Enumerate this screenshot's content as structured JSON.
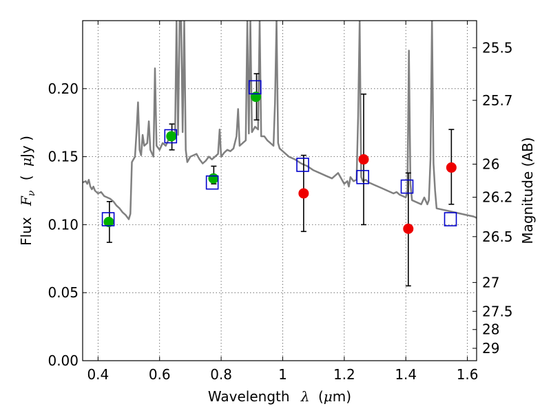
{
  "chart_data": {
    "type": "scatter",
    "xlabel": "Wavelength",
    "xlabel_symbol": "λ",
    "xlabel_unit_open": "(",
    "xlabel_unit_mu": "μ",
    "xlabel_unit_rest": "m)",
    "ylabel": "Flux",
    "ylabel_symbol_F": "F",
    "ylabel_symbol_sub": "ν",
    "ylabel_unit_open": "(",
    "ylabel_unit_mu": "μ",
    "ylabel_unit_rest": "Jy )",
    "y2label": "Magnitude (AB)",
    "xlim": [
      0.35,
      1.63
    ],
    "ylim": [
      0.0,
      0.25
    ],
    "grid": true,
    "x_ticks": [
      0.4,
      0.6,
      0.8,
      1.0,
      1.2,
      1.4,
      1.6
    ],
    "x_tick_labels": [
      "0.4",
      "0.6",
      "0.8",
      "1",
      "1.2",
      "1.4",
      "1.6"
    ],
    "y_ticks": [
      0.0,
      0.05,
      0.1,
      0.15,
      0.2
    ],
    "y_tick_labels": [
      "0.00",
      "0.05",
      "0.10",
      "0.15",
      "0.20"
    ],
    "y2_ticks": [
      {
        "flux": 0.2301,
        "label": "25.5"
      },
      {
        "flux": 0.1914,
        "label": "25.7"
      },
      {
        "flux": 0.1445,
        "label": "26"
      },
      {
        "flux": 0.1202,
        "label": "26.2"
      },
      {
        "flux": 0.0912,
        "label": "26.5"
      },
      {
        "flux": 0.0575,
        "label": "27"
      },
      {
        "flux": 0.0363,
        "label": "27.5"
      },
      {
        "flux": 0.0229,
        "label": "28"
      },
      {
        "flux": 0.0091,
        "label": "29"
      }
    ],
    "colors": {
      "model": "#808080",
      "green": "#00b000",
      "red": "#ee0000",
      "square": "#0000cc",
      "error": "#000000",
      "grid": "#555555"
    },
    "model_spectrum": [
      [
        0.35,
        0.131
      ],
      [
        0.36,
        0.132
      ],
      [
        0.365,
        0.13
      ],
      [
        0.37,
        0.133
      ],
      [
        0.375,
        0.128
      ],
      [
        0.38,
        0.126
      ],
      [
        0.385,
        0.128
      ],
      [
        0.39,
        0.125
      ],
      [
        0.4,
        0.123
      ],
      [
        0.41,
        0.124
      ],
      [
        0.42,
        0.121
      ],
      [
        0.43,
        0.12
      ],
      [
        0.44,
        0.119
      ],
      [
        0.45,
        0.117
      ],
      [
        0.46,
        0.114
      ],
      [
        0.47,
        0.112
      ],
      [
        0.48,
        0.109
      ],
      [
        0.49,
        0.107
      ],
      [
        0.5,
        0.104
      ],
      [
        0.505,
        0.108
      ],
      [
        0.51,
        0.146
      ],
      [
        0.52,
        0.15
      ],
      [
        0.525,
        0.168
      ],
      [
        0.53,
        0.19
      ],
      [
        0.535,
        0.155
      ],
      [
        0.54,
        0.151
      ],
      [
        0.545,
        0.166
      ],
      [
        0.55,
        0.158
      ],
      [
        0.56,
        0.16
      ],
      [
        0.565,
        0.176
      ],
      [
        0.57,
        0.155
      ],
      [
        0.58,
        0.15
      ],
      [
        0.585,
        0.215
      ],
      [
        0.59,
        0.158
      ],
      [
        0.6,
        0.155
      ],
      [
        0.61,
        0.16
      ],
      [
        0.62,
        0.158
      ],
      [
        0.63,
        0.163
      ],
      [
        0.64,
        0.168
      ],
      [
        0.65,
        0.163
      ],
      [
        0.655,
        0.25
      ],
      [
        0.66,
        0.166
      ],
      [
        0.665,
        0.25
      ],
      [
        0.67,
        0.25
      ],
      [
        0.675,
        0.168
      ],
      [
        0.68,
        0.25
      ],
      [
        0.685,
        0.155
      ],
      [
        0.69,
        0.146
      ],
      [
        0.7,
        0.15
      ],
      [
        0.72,
        0.152
      ],
      [
        0.73,
        0.148
      ],
      [
        0.74,
        0.145
      ],
      [
        0.75,
        0.147
      ],
      [
        0.76,
        0.15
      ],
      [
        0.77,
        0.148
      ],
      [
        0.78,
        0.15
      ],
      [
        0.79,
        0.152
      ],
      [
        0.795,
        0.17
      ],
      [
        0.8,
        0.15
      ],
      [
        0.81,
        0.153
      ],
      [
        0.82,
        0.155
      ],
      [
        0.83,
        0.154
      ],
      [
        0.84,
        0.156
      ],
      [
        0.85,
        0.165
      ],
      [
        0.855,
        0.185
      ],
      [
        0.86,
        0.158
      ],
      [
        0.87,
        0.16
      ],
      [
        0.88,
        0.162
      ],
      [
        0.885,
        0.25
      ],
      [
        0.89,
        0.167
      ],
      [
        0.895,
        0.25
      ],
      [
        0.9,
        0.168
      ],
      [
        0.91,
        0.172
      ],
      [
        0.92,
        0.17
      ],
      [
        0.925,
        0.25
      ],
      [
        0.93,
        0.165
      ],
      [
        0.94,
        0.165
      ],
      [
        0.95,
        0.162
      ],
      [
        0.96,
        0.16
      ],
      [
        0.97,
        0.158
      ],
      [
        0.975,
        0.19
      ],
      [
        0.98,
        0.25
      ],
      [
        0.985,
        0.16
      ],
      [
        0.99,
        0.156
      ],
      [
        1.0,
        0.154
      ],
      [
        1.02,
        0.15
      ],
      [
        1.04,
        0.148
      ],
      [
        1.06,
        0.145
      ],
      [
        1.08,
        0.143
      ],
      [
        1.1,
        0.14
      ],
      [
        1.12,
        0.138
      ],
      [
        1.14,
        0.136
      ],
      [
        1.16,
        0.134
      ],
      [
        1.18,
        0.138
      ],
      [
        1.19,
        0.134
      ],
      [
        1.2,
        0.13
      ],
      [
        1.21,
        0.132
      ],
      [
        1.215,
        0.128
      ],
      [
        1.22,
        0.135
      ],
      [
        1.23,
        0.132
      ],
      [
        1.24,
        0.133
      ],
      [
        1.245,
        0.18
      ],
      [
        1.25,
        0.25
      ],
      [
        1.255,
        0.135
      ],
      [
        1.26,
        0.132
      ],
      [
        1.27,
        0.133
      ],
      [
        1.28,
        0.131
      ],
      [
        1.3,
        0.129
      ],
      [
        1.32,
        0.127
      ],
      [
        1.34,
        0.125
      ],
      [
        1.36,
        0.123
      ],
      [
        1.37,
        0.124
      ],
      [
        1.38,
        0.122
      ],
      [
        1.39,
        0.121
      ],
      [
        1.4,
        0.12
      ],
      [
        1.405,
        0.124
      ],
      [
        1.41,
        0.228
      ],
      [
        1.415,
        0.13
      ],
      [
        1.42,
        0.118
      ],
      [
        1.43,
        0.117
      ],
      [
        1.44,
        0.116
      ],
      [
        1.45,
        0.115
      ],
      [
        1.46,
        0.12
      ],
      [
        1.47,
        0.115
      ],
      [
        1.475,
        0.118
      ],
      [
        1.48,
        0.148
      ],
      [
        1.485,
        0.25
      ],
      [
        1.49,
        0.145
      ],
      [
        1.495,
        0.125
      ],
      [
        1.5,
        0.112
      ],
      [
        1.52,
        0.111
      ],
      [
        1.54,
        0.11
      ],
      [
        1.56,
        0.109
      ],
      [
        1.58,
        0.108
      ],
      [
        1.6,
        0.107
      ],
      [
        1.62,
        0.106
      ],
      [
        1.63,
        0.105
      ]
    ],
    "series": [
      {
        "marker": "circle-green",
        "points": [
          {
            "x": 0.435,
            "y": 0.102
          },
          {
            "x": 0.638,
            "y": 0.165
          },
          {
            "x": 0.775,
            "y": 0.134
          },
          {
            "x": 0.913,
            "y": 0.194
          }
        ]
      },
      {
        "marker": "circle-red",
        "points": [
          {
            "x": 1.068,
            "y": 0.123
          },
          {
            "x": 1.263,
            "y": 0.148
          },
          {
            "x": 1.408,
            "y": 0.097
          },
          {
            "x": 1.548,
            "y": 0.142
          }
        ]
      },
      {
        "marker": "square-blue",
        "points": [
          {
            "x": 0.433,
            "y": 0.104
          },
          {
            "x": 0.636,
            "y": 0.165
          },
          {
            "x": 0.771,
            "y": 0.131
          },
          {
            "x": 0.91,
            "y": 0.201
          },
          {
            "x": 1.065,
            "y": 0.144
          },
          {
            "x": 1.26,
            "y": 0.135
          },
          {
            "x": 1.404,
            "y": 0.128
          },
          {
            "x": 1.545,
            "y": 0.104
          }
        ]
      }
    ],
    "error_bars": [
      {
        "x": 0.437,
        "low": 0.087,
        "high": 0.117
      },
      {
        "x": 0.64,
        "low": 0.155,
        "high": 0.174
      },
      {
        "x": 0.776,
        "low": 0.13,
        "high": 0.143
      },
      {
        "x": 0.915,
        "low": 0.177,
        "high": 0.211
      },
      {
        "x": 1.068,
        "low": 0.095,
        "high": 0.151
      },
      {
        "x": 1.263,
        "low": 0.1,
        "high": 0.196
      },
      {
        "x": 1.408,
        "low": 0.055,
        "high": 0.138
      },
      {
        "x": 1.548,
        "low": 0.115,
        "high": 0.17
      }
    ]
  }
}
